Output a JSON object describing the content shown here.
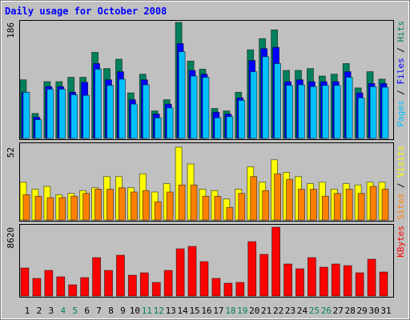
{
  "chart_data": {
    "type": "bar",
    "title": "Daily usage for October 2008",
    "categories": [
      "1",
      "2",
      "3",
      "4",
      "5",
      "6",
      "7",
      "8",
      "9",
      "10",
      "11",
      "12",
      "13",
      "14",
      "15",
      "16",
      "17",
      "18",
      "19",
      "20",
      "21",
      "22",
      "23",
      "24",
      "25",
      "26",
      "27",
      "28",
      "29",
      "30",
      "31"
    ],
    "category_colors": [
      "#000000",
      "#000000",
      "#000000",
      "#00805c",
      "#00805c",
      "#000000",
      "#000000",
      "#000000",
      "#000000",
      "#000000",
      "#00805c",
      "#00805c",
      "#000000",
      "#000000",
      "#000000",
      "#000000",
      "#000000",
      "#00805c",
      "#00805c",
      "#000000",
      "#000000",
      "#000000",
      "#000000",
      "#000000",
      "#00805c",
      "#00805c",
      "#000000",
      "#000000",
      "#000000",
      "#000000",
      "#000000"
    ],
    "legend_separator": " / ",
    "panels": [
      {
        "ylim": [
          0,
          186
        ],
        "yticks": [
          186
        ],
        "series": [
          {
            "name": "Hits",
            "color": "#00805c",
            "values": [
              94,
              40,
              91,
              91,
              98,
              98,
              138,
              112,
              127,
              73,
              103,
              44,
              62,
              186,
              124,
              111,
              48,
              44,
              74,
              142,
              160,
              174,
              109,
              109,
              112,
              100,
              103,
              120,
              81,
              107,
              95
            ]
          },
          {
            "name": "Files",
            "color": "#0000ff",
            "values": [
              74,
              34,
              83,
              83,
              74,
              90,
              120,
              94,
              107,
              62,
              94,
              39,
              55,
              152,
              109,
              103,
              42,
              39,
              65,
              125,
              144,
              146,
              91,
              94,
              91,
              91,
              91,
              107,
              73,
              88,
              88
            ]
          },
          {
            "name": "Pages",
            "color": "#00c0ff",
            "values": [
              74,
              30,
              79,
              79,
              70,
              69,
              111,
              85,
              95,
              55,
              86,
              33,
              49,
              139,
              100,
              98,
              33,
              35,
              61,
              107,
              131,
              120,
              85,
              86,
              83,
              85,
              85,
              98,
              65,
              83,
              82
            ]
          }
        ]
      },
      {
        "ylim": [
          0,
          52
        ],
        "yticks": [
          52
        ],
        "series": [
          {
            "name": "Visits",
            "color": "#ffff00",
            "values": [
              27,
              22,
              24,
              18,
              19,
              21,
              23,
              31,
              31,
              23,
              33,
              20,
              26,
              52,
              40,
              22,
              21,
              15,
              22,
              38,
              27,
              43,
              34,
              31,
              26,
              27,
              22,
              26,
              25,
              27,
              27
            ]
          },
          {
            "name": "Sites",
            "color": "#ff8000",
            "values": [
              18,
              17,
              16,
              16,
              17,
              19,
              22,
              22,
              23,
              20,
              21,
              13,
              20,
              25,
              25,
              17,
              17,
              9,
              19,
              31,
              21,
              33,
              29,
              22,
              22,
              17,
              19,
              22,
              19,
              24,
              22
            ]
          }
        ]
      },
      {
        "ylim": [
          0,
          8620
        ],
        "yticks": [
          8620
        ],
        "series": [
          {
            "name": "KBytes",
            "color": "#ff0000",
            "values": [
              3508,
              2205,
              3207,
              2406,
              1403,
              2305,
              4811,
              3207,
              5112,
              2606,
              2907,
              1704,
              3207,
              5914,
              6214,
              4310,
              2205,
              1604,
              1704,
              6816,
              5212,
              8620,
              4009,
              3408,
              4811,
              3608,
              4009,
              3809,
              2907,
              4611,
              3007
            ]
          }
        ]
      }
    ]
  }
}
